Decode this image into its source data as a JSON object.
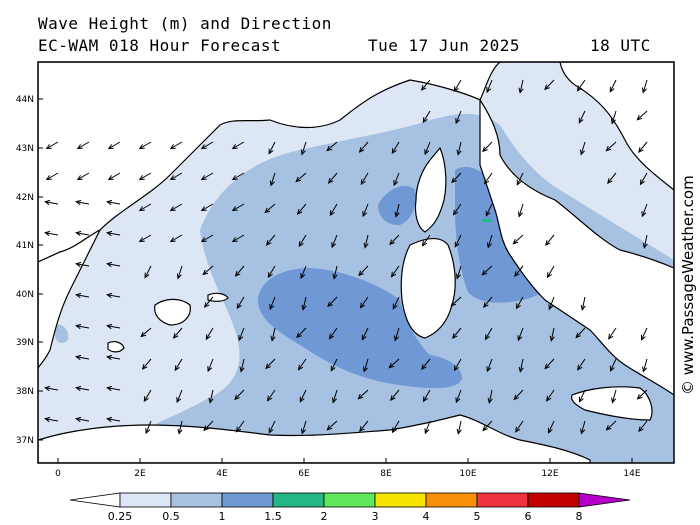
{
  "header": {
    "title_line1": "Wave Height (m) and Direction",
    "title_line2": "EC-WAM 018 Hour Forecast",
    "date": "Tue 17 Jun 2025",
    "time": "18 UTC"
  },
  "credit": "© www.PassageWeather.com",
  "axes": {
    "lat_labels": [
      "44N",
      "43N",
      "42N",
      "41N",
      "40N",
      "39N",
      "38N",
      "37N"
    ],
    "lon_labels": [
      "0",
      "2E",
      "4E",
      "6E",
      "8E",
      "10E",
      "12E",
      "14E"
    ]
  },
  "colorbar": {
    "labels": [
      "0.25",
      "0.5",
      "1",
      "1.5",
      "2",
      "3",
      "4",
      "5",
      "6",
      "8"
    ],
    "colors": [
      "#ffffff",
      "#dde6f4",
      "#a6c1e2",
      "#6f98d4",
      "#25b886",
      "#5fe85c",
      "#f6e200",
      "#f78f08",
      "#ec3540",
      "#c10000",
      "#b400c8"
    ]
  },
  "map": {
    "colors": {
      "sea_0_25": "#ffffff",
      "sea_0_5": "#dde6f4",
      "sea_1": "#a6c1e2",
      "sea_1_5": "#6f98d4",
      "land": "#ffffff",
      "coast": "#000000"
    },
    "arrow_direction": "mostly south / southeast"
  }
}
